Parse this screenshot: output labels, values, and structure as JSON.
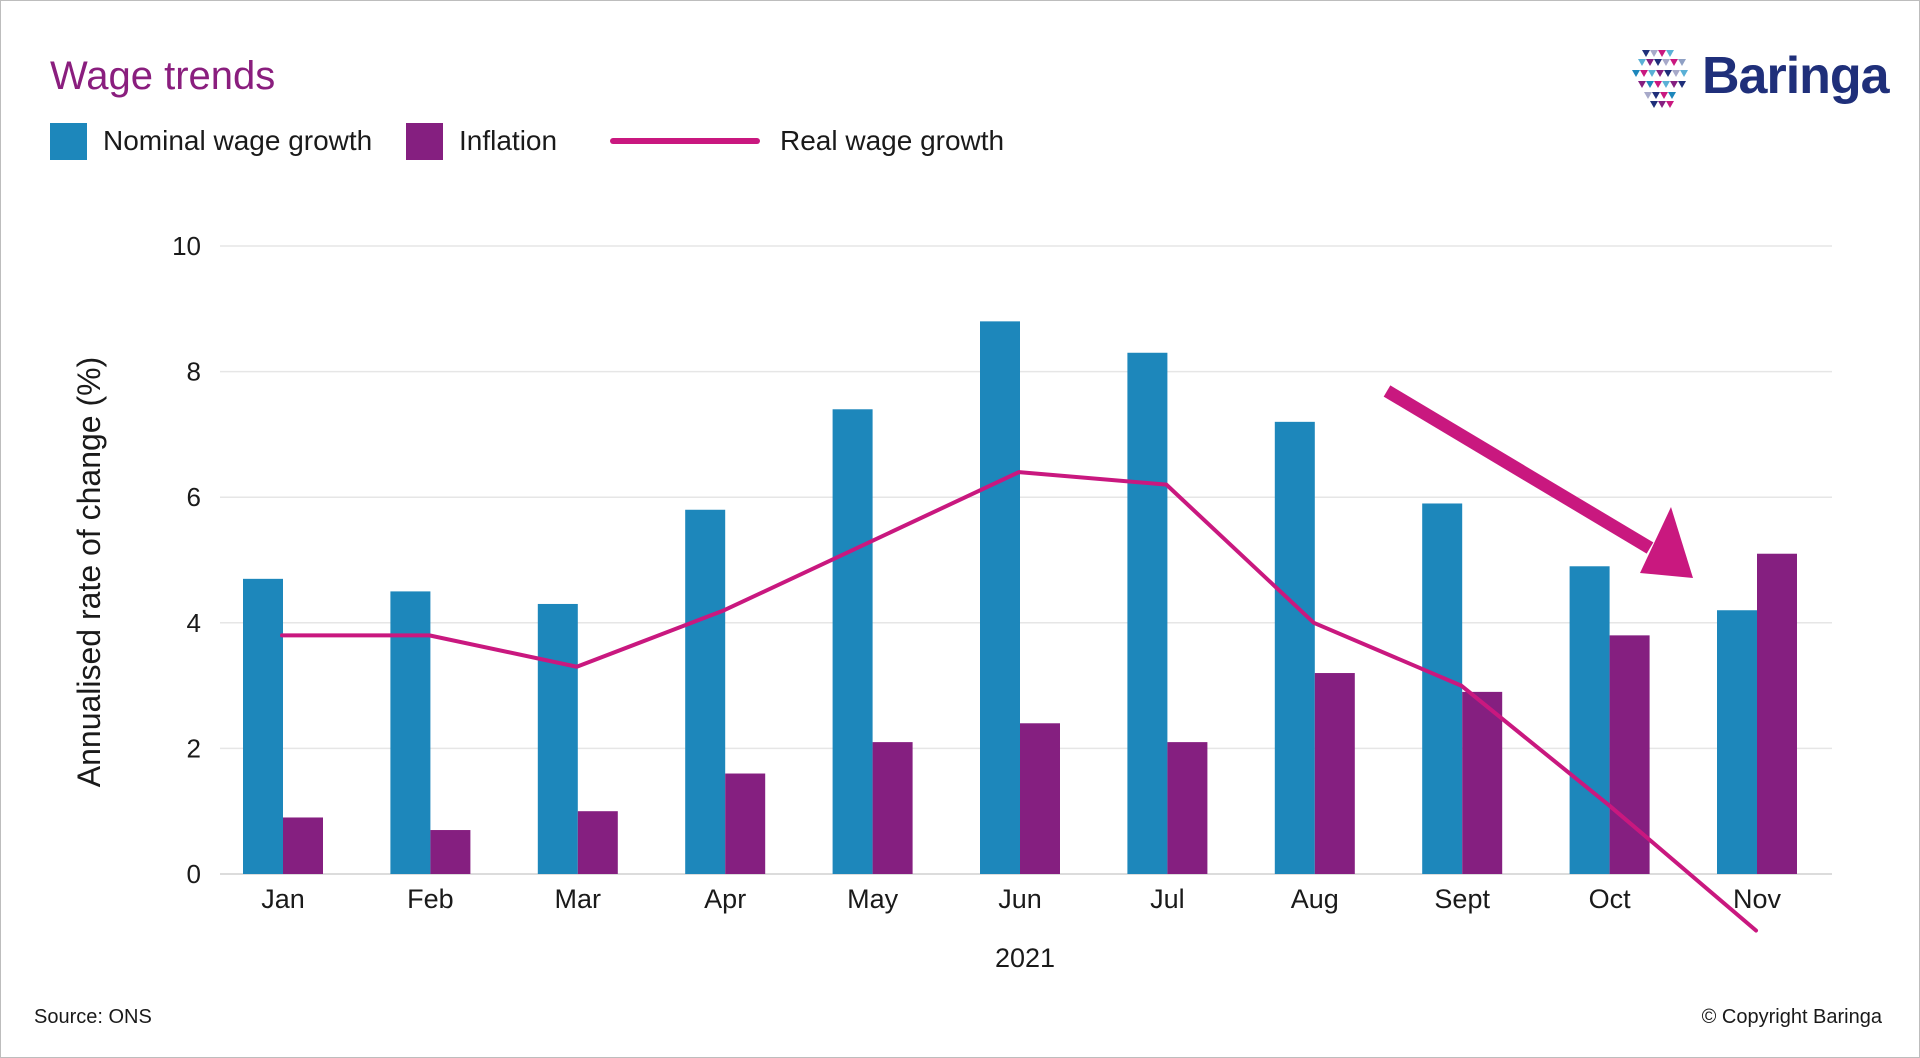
{
  "title": "Wage trends",
  "legend": [
    {
      "label": "Nominal wage growth",
      "color": "#1d87bb",
      "kind": "bar"
    },
    {
      "label": "Inflation",
      "color": "#851f80",
      "kind": "bar"
    },
    {
      "label": "Real wage growth",
      "color": "#c9187f",
      "kind": "line"
    }
  ],
  "logo": {
    "text": "Baringa",
    "icon": "triangle-mosaic-icon"
  },
  "footer": {
    "source": "Source: ONS",
    "copyright": "© Copyright Baringa"
  },
  "colors": {
    "nominal": "#1d87bb",
    "inflation": "#851f80",
    "real": "#c9187f",
    "title": "#8a1e7e",
    "grid": "#e6e6e6",
    "brand": "#1f2f7a"
  },
  "chart_data": {
    "type": "bar",
    "categories": [
      "Jan",
      "Feb",
      "Mar",
      "Apr",
      "May",
      "Jun",
      "Jul",
      "Aug",
      "Sept",
      "Oct",
      "Nov"
    ],
    "series": [
      {
        "name": "Nominal wage growth",
        "type": "bar",
        "values": [
          4.7,
          4.5,
          4.3,
          5.8,
          7.4,
          8.8,
          8.3,
          7.2,
          5.9,
          4.9,
          4.2
        ]
      },
      {
        "name": "Inflation",
        "type": "bar",
        "values": [
          0.9,
          0.7,
          1.0,
          1.6,
          2.1,
          2.4,
          2.1,
          3.2,
          2.9,
          3.8,
          5.1
        ]
      },
      {
        "name": "Real wage growth",
        "type": "line",
        "values": [
          3.8,
          3.8,
          3.3,
          4.2,
          5.3,
          6.4,
          6.2,
          4.0,
          3.0,
          1.1,
          -0.9
        ]
      }
    ],
    "xlabel": "2021",
    "ylabel": "Annualised rate of change (%)",
    "ylim": [
      0,
      10
    ],
    "yticks": [
      0,
      2,
      4,
      6,
      8,
      10
    ],
    "grid": true,
    "legend_position": "top-left",
    "annotation": {
      "kind": "downward-trend-arrow",
      "from_category": "Aug",
      "to_category": "Nov"
    }
  }
}
